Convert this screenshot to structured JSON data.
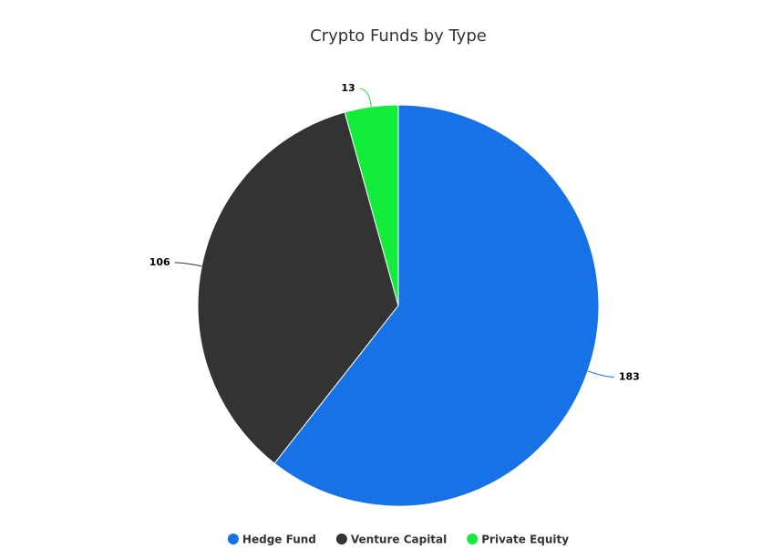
{
  "chart_data": {
    "type": "pie",
    "title": "Crypto Funds by Type",
    "categories": [
      "Hedge Fund",
      "Venture Capital",
      "Private Equity"
    ],
    "values": [
      183,
      106,
      13
    ],
    "colors": [
      "#1672e6",
      "#333333",
      "#13ec3a"
    ],
    "legend": "bottom"
  }
}
